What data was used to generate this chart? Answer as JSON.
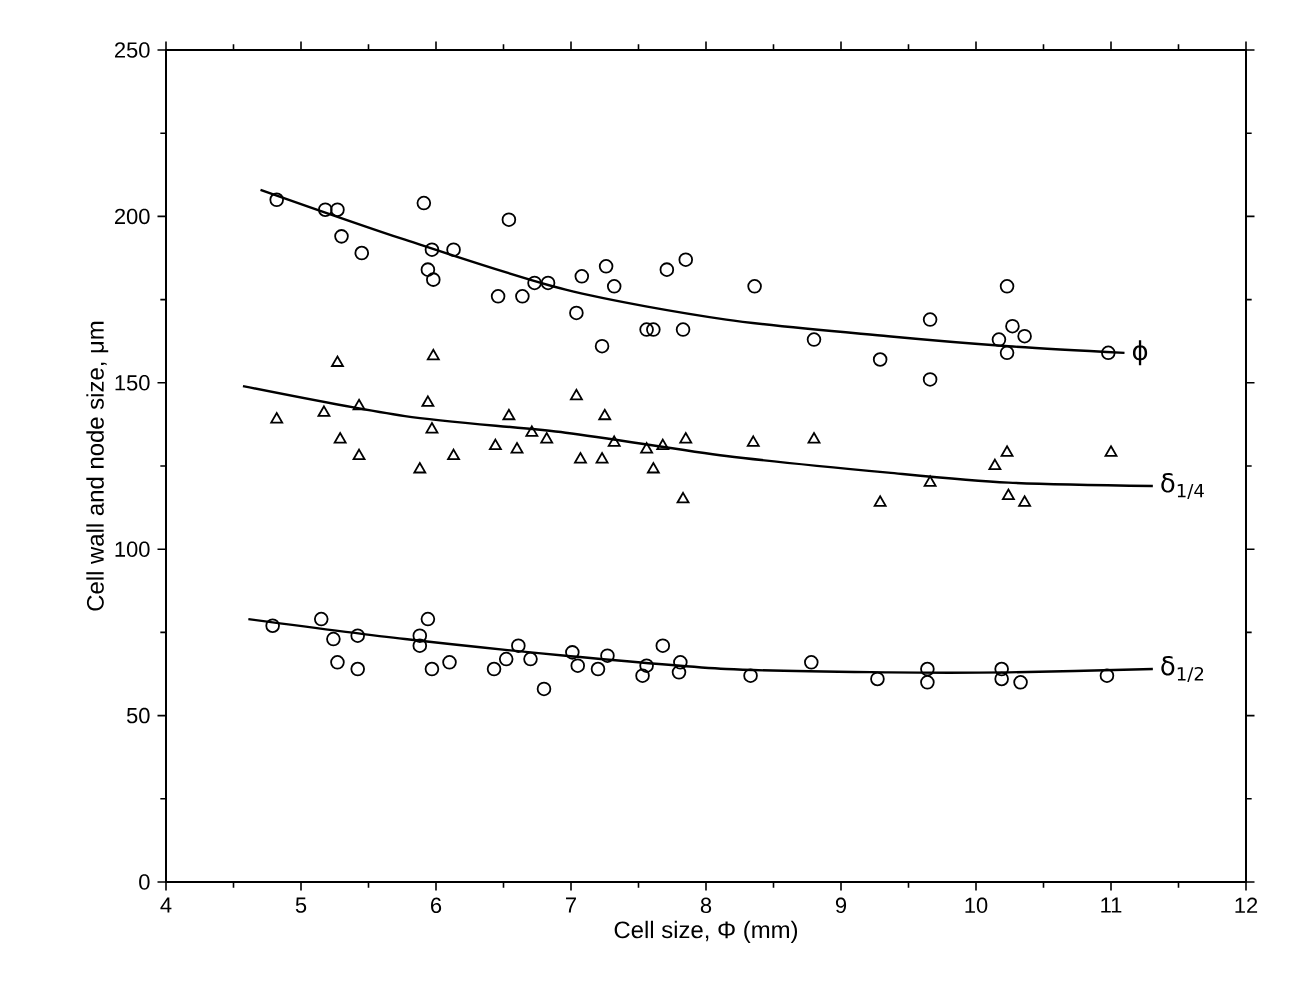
{
  "chart_data": {
    "type": "scatter",
    "xlabel": "Cell size, Φ (mm)",
    "ylabel": "Cell wall and node size, μm",
    "xlim": [
      4,
      12
    ],
    "ylim": [
      0,
      250
    ],
    "xticks": [
      4,
      5,
      6,
      7,
      8,
      9,
      10,
      11,
      12
    ],
    "yticks": [
      0,
      50,
      100,
      150,
      200,
      250
    ],
    "series": [
      {
        "marker": "circle",
        "color": "#000000",
        "x": [
          4.82,
          5.18,
          5.27,
          5.3,
          5.45,
          5.91,
          5.97,
          5.94,
          5.98,
          6.13,
          6.54,
          6.46,
          6.64,
          6.73,
          6.83,
          7.04,
          7.08,
          7.26,
          7.32,
          7.23,
          7.56,
          7.61,
          7.71,
          7.85,
          7.83,
          8.36,
          8.8,
          9.29,
          9.66,
          9.66,
          10.23,
          10.17,
          10.27,
          10.36,
          10.23,
          10.98
        ],
        "values": [
          205,
          202,
          202,
          194,
          189,
          204,
          190,
          184,
          181,
          190,
          199,
          176,
          176,
          180,
          180,
          171,
          182,
          185,
          179,
          161,
          166,
          166,
          184,
          187,
          166,
          179,
          163,
          157,
          169,
          151,
          179,
          163,
          167,
          164,
          159,
          159
        ]
      },
      {
        "marker": "triangle",
        "color": "#000000",
        "x": [
          4.82,
          5.17,
          5.27,
          5.29,
          5.43,
          5.43,
          5.88,
          5.94,
          5.98,
          5.97,
          6.13,
          6.44,
          6.54,
          6.6,
          6.71,
          6.82,
          7.04,
          7.07,
          7.23,
          7.25,
          7.32,
          7.56,
          7.61,
          7.68,
          7.85,
          7.83,
          8.35,
          8.8,
          9.29,
          9.66,
          10.14,
          10.23,
          10.24,
          10.36,
          11.0
        ],
        "values": [
          139,
          141,
          156,
          133,
          143,
          128,
          124,
          144,
          158,
          136,
          128,
          131,
          140,
          130,
          135,
          133,
          146,
          127,
          127,
          140,
          132,
          130,
          124,
          131,
          133,
          115,
          132,
          133,
          114,
          120,
          125,
          129,
          116,
          114,
          129
        ]
      },
      {
        "marker": "circle",
        "color": "#000000",
        "x": [
          4.79,
          5.15,
          5.24,
          5.27,
          5.42,
          5.42,
          5.88,
          5.94,
          5.88,
          5.97,
          6.1,
          6.43,
          6.52,
          6.61,
          6.7,
          6.8,
          7.01,
          7.05,
          7.2,
          7.27,
          7.53,
          7.56,
          7.68,
          7.8,
          7.81,
          8.33,
          8.78,
          9.27,
          9.64,
          9.64,
          10.19,
          10.19,
          10.33,
          10.97
        ],
        "values": [
          77,
          79,
          73,
          66,
          74,
          64,
          74,
          79,
          71,
          64,
          66,
          64,
          67,
          71,
          67,
          58,
          69,
          65,
          64,
          68,
          62,
          65,
          71,
          63,
          66,
          62,
          66,
          61,
          64,
          60,
          64,
          61,
          60,
          62
        ]
      },
      {
        "type": "line",
        "name": "ϕ",
        "marker": "none",
        "line_style": "solid",
        "color": "#000000",
        "x": [
          4.7,
          5.77,
          6.96,
          8.15,
          9.35,
          10.24,
          11.1
        ],
        "values": [
          208,
          193,
          178,
          169,
          164,
          161,
          159
        ]
      },
      {
        "type": "line",
        "name": "δ$_{1/4}$",
        "marker": "none",
        "line_style": "solid",
        "color": "#000000",
        "x": [
          4.57,
          5.77,
          6.96,
          8.15,
          9.35,
          10.24,
          11.31
        ],
        "values": [
          149,
          140,
          135,
          128,
          123,
          120,
          119
        ]
      },
      {
        "type": "line",
        "name": "δ$_{1/2}$",
        "marker": "none",
        "line_style": "solid",
        "color": "#000000",
        "x": [
          4.61,
          5.77,
          6.96,
          8.15,
          9.35,
          10.24,
          11.31
        ],
        "values": [
          79,
          73,
          68,
          64,
          63,
          63,
          64
        ]
      }
    ]
  }
}
